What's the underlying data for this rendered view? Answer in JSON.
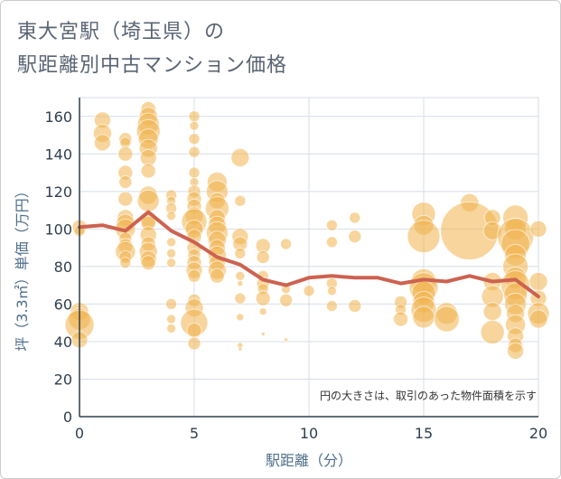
{
  "title_lines": [
    "東大宮駅（埼玉県）の",
    "駅距離別中古マンション価格"
  ],
  "chart_data": {
    "type": "scatter",
    "title": "東大宮駅（埼玉県）の駅距離別中古マンション価格",
    "xlabel": "駅距離（分）",
    "ylabel": "坪（3.3㎡）単価（万円）",
    "xlim": [
      0,
      20
    ],
    "ylim": [
      0,
      170
    ],
    "x_ticks": [
      0,
      5,
      10,
      15,
      20
    ],
    "y_ticks": [
      0,
      20,
      40,
      60,
      80,
      100,
      120,
      140,
      160
    ],
    "grid": true,
    "note": "円の大きさは、取引のあった物件面積を示す",
    "colors": {
      "bubble": "#f0b24c",
      "line": "#cd6250",
      "grid": "#d7dde4",
      "axis": "#2f3e4e"
    },
    "bubbles": [
      {
        "x": 0,
        "y": 101,
        "s": 8
      },
      {
        "x": 0,
        "y": 99,
        "s": 6
      },
      {
        "x": 0,
        "y": 56,
        "s": 10
      },
      {
        "x": 0,
        "y": 52,
        "s": 12
      },
      {
        "x": 0,
        "y": 49,
        "s": 16
      },
      {
        "x": 0,
        "y": 41,
        "s": 9
      },
      {
        "x": 1,
        "y": 158,
        "s": 9
      },
      {
        "x": 1,
        "y": 151,
        "s": 10
      },
      {
        "x": 1,
        "y": 146,
        "s": 9
      },
      {
        "x": 2,
        "y": 148,
        "s": 7
      },
      {
        "x": 2,
        "y": 146,
        "s": 6
      },
      {
        "x": 2,
        "y": 140,
        "s": 8
      },
      {
        "x": 2,
        "y": 130,
        "s": 8
      },
      {
        "x": 2,
        "y": 125,
        "s": 7
      },
      {
        "x": 2,
        "y": 116,
        "s": 8
      },
      {
        "x": 2,
        "y": 106,
        "s": 9
      },
      {
        "x": 2,
        "y": 103,
        "s": 10
      },
      {
        "x": 2,
        "y": 100,
        "s": 11
      },
      {
        "x": 2,
        "y": 95,
        "s": 7
      },
      {
        "x": 2,
        "y": 91,
        "s": 8
      },
      {
        "x": 2,
        "y": 88,
        "s": 11
      },
      {
        "x": 2,
        "y": 85,
        "s": 7
      },
      {
        "x": 2,
        "y": 82,
        "s": 6
      },
      {
        "x": 3,
        "y": 164,
        "s": 8
      },
      {
        "x": 3,
        "y": 160,
        "s": 10
      },
      {
        "x": 3,
        "y": 156,
        "s": 12
      },
      {
        "x": 3,
        "y": 152,
        "s": 13
      },
      {
        "x": 3,
        "y": 148,
        "s": 11
      },
      {
        "x": 3,
        "y": 143,
        "s": 10
      },
      {
        "x": 3,
        "y": 138,
        "s": 9
      },
      {
        "x": 3,
        "y": 131,
        "s": 8
      },
      {
        "x": 3,
        "y": 118,
        "s": 10
      },
      {
        "x": 3,
        "y": 115,
        "s": 12
      },
      {
        "x": 3,
        "y": 105,
        "s": 9
      },
      {
        "x": 3,
        "y": 103,
        "s": 8
      },
      {
        "x": 3,
        "y": 97,
        "s": 9
      },
      {
        "x": 3,
        "y": 92,
        "s": 8
      },
      {
        "x": 3,
        "y": 88,
        "s": 10
      },
      {
        "x": 3,
        "y": 84,
        "s": 9
      },
      {
        "x": 3,
        "y": 82,
        "s": 8
      },
      {
        "x": 4,
        "y": 118,
        "s": 6
      },
      {
        "x": 4,
        "y": 115,
        "s": 5
      },
      {
        "x": 4,
        "y": 111,
        "s": 6
      },
      {
        "x": 4,
        "y": 107,
        "s": 5
      },
      {
        "x": 4,
        "y": 93,
        "s": 5
      },
      {
        "x": 4,
        "y": 87,
        "s": 5
      },
      {
        "x": 4,
        "y": 82,
        "s": 5
      },
      {
        "x": 4,
        "y": 60,
        "s": 6
      },
      {
        "x": 4,
        "y": 52,
        "s": 5
      },
      {
        "x": 4,
        "y": 47,
        "s": 5
      },
      {
        "x": 5,
        "y": 160,
        "s": 6
      },
      {
        "x": 5,
        "y": 155,
        "s": 5
      },
      {
        "x": 5,
        "y": 148,
        "s": 6
      },
      {
        "x": 5,
        "y": 141,
        "s": 6
      },
      {
        "x": 5,
        "y": 130,
        "s": 6
      },
      {
        "x": 5,
        "y": 125,
        "s": 5
      },
      {
        "x": 5,
        "y": 120,
        "s": 7
      },
      {
        "x": 5,
        "y": 116,
        "s": 8
      },
      {
        "x": 5,
        "y": 112,
        "s": 8
      },
      {
        "x": 5,
        "y": 107,
        "s": 10
      },
      {
        "x": 5,
        "y": 104,
        "s": 14
      },
      {
        "x": 5,
        "y": 100,
        "s": 10
      },
      {
        "x": 5,
        "y": 96,
        "s": 8
      },
      {
        "x": 5,
        "y": 90,
        "s": 8
      },
      {
        "x": 5,
        "y": 86,
        "s": 7
      },
      {
        "x": 5,
        "y": 82,
        "s": 8
      },
      {
        "x": 5,
        "y": 78,
        "s": 9
      },
      {
        "x": 5,
        "y": 75,
        "s": 7
      },
      {
        "x": 5,
        "y": 62,
        "s": 7
      },
      {
        "x": 5,
        "y": 58,
        "s": 10
      },
      {
        "x": 5,
        "y": 50,
        "s": 15
      },
      {
        "x": 5,
        "y": 46,
        "s": 8
      },
      {
        "x": 5,
        "y": 39,
        "s": 7
      },
      {
        "x": 6,
        "y": 125,
        "s": 11
      },
      {
        "x": 6,
        "y": 120,
        "s": 12
      },
      {
        "x": 6,
        "y": 115,
        "s": 9
      },
      {
        "x": 6,
        "y": 111,
        "s": 13
      },
      {
        "x": 6,
        "y": 106,
        "s": 9
      },
      {
        "x": 6,
        "y": 102,
        "s": 10
      },
      {
        "x": 6,
        "y": 98,
        "s": 12
      },
      {
        "x": 6,
        "y": 94,
        "s": 10
      },
      {
        "x": 6,
        "y": 90,
        "s": 9
      },
      {
        "x": 6,
        "y": 86,
        "s": 10
      },
      {
        "x": 6,
        "y": 82,
        "s": 9
      },
      {
        "x": 6,
        "y": 78,
        "s": 10
      },
      {
        "x": 6,
        "y": 75,
        "s": 8
      },
      {
        "x": 7,
        "y": 138,
        "s": 10
      },
      {
        "x": 7,
        "y": 115,
        "s": 6
      },
      {
        "x": 7,
        "y": 96,
        "s": 9
      },
      {
        "x": 7,
        "y": 92,
        "s": 8
      },
      {
        "x": 7,
        "y": 87,
        "s": 6
      },
      {
        "x": 7,
        "y": 75,
        "s": 5
      },
      {
        "x": 7,
        "y": 71,
        "s": 3
      },
      {
        "x": 7,
        "y": 63,
        "s": 6
      },
      {
        "x": 7,
        "y": 53,
        "s": 4
      },
      {
        "x": 7,
        "y": 38,
        "s": 3
      },
      {
        "x": 7,
        "y": 36,
        "s": 2
      },
      {
        "x": 8,
        "y": 91,
        "s": 8
      },
      {
        "x": 8,
        "y": 85,
        "s": 7
      },
      {
        "x": 8,
        "y": 75,
        "s": 6
      },
      {
        "x": 8,
        "y": 71,
        "s": 7
      },
      {
        "x": 8,
        "y": 68,
        "s": 6
      },
      {
        "x": 8,
        "y": 63,
        "s": 8
      },
      {
        "x": 8,
        "y": 56,
        "s": 4
      },
      {
        "x": 8,
        "y": 44,
        "s": 2
      },
      {
        "x": 9,
        "y": 92,
        "s": 6
      },
      {
        "x": 9,
        "y": 68,
        "s": 5
      },
      {
        "x": 9,
        "y": 62,
        "s": 7
      },
      {
        "x": 9,
        "y": 41,
        "s": 2
      },
      {
        "x": 10,
        "y": 67,
        "s": 6
      },
      {
        "x": 11,
        "y": 102,
        "s": 6
      },
      {
        "x": 11,
        "y": 93,
        "s": 6
      },
      {
        "x": 11,
        "y": 71,
        "s": 6
      },
      {
        "x": 11,
        "y": 67,
        "s": 5
      },
      {
        "x": 11,
        "y": 59,
        "s": 6
      },
      {
        "x": 12,
        "y": 106,
        "s": 6
      },
      {
        "x": 12,
        "y": 96,
        "s": 7
      },
      {
        "x": 12,
        "y": 59,
        "s": 7
      },
      {
        "x": 14,
        "y": 61,
        "s": 7
      },
      {
        "x": 14,
        "y": 57,
        "s": 6
      },
      {
        "x": 14,
        "y": 52,
        "s": 8
      },
      {
        "x": 15,
        "y": 108,
        "s": 13
      },
      {
        "x": 15,
        "y": 102,
        "s": 11
      },
      {
        "x": 15,
        "y": 96,
        "s": 18
      },
      {
        "x": 15,
        "y": 72,
        "s": 14
      },
      {
        "x": 15,
        "y": 69,
        "s": 16
      },
      {
        "x": 15,
        "y": 66,
        "s": 13
      },
      {
        "x": 15,
        "y": 61,
        "s": 12
      },
      {
        "x": 15,
        "y": 57,
        "s": 14
      },
      {
        "x": 15,
        "y": 53,
        "s": 12
      },
      {
        "x": 16,
        "y": 55,
        "s": 12
      },
      {
        "x": 16,
        "y": 52,
        "s": 14
      },
      {
        "x": 17,
        "y": 114,
        "s": 10
      },
      {
        "x": 17,
        "y": 99,
        "s": 32
      },
      {
        "x": 18,
        "y": 106,
        "s": 9
      },
      {
        "x": 18,
        "y": 99,
        "s": 10
      },
      {
        "x": 18,
        "y": 72,
        "s": 10
      },
      {
        "x": 18,
        "y": 64,
        "s": 12
      },
      {
        "x": 18,
        "y": 56,
        "s": 10
      },
      {
        "x": 18,
        "y": 45,
        "s": 13
      },
      {
        "x": 19,
        "y": 106,
        "s": 14
      },
      {
        "x": 19,
        "y": 100,
        "s": 12
      },
      {
        "x": 19,
        "y": 96,
        "s": 20
      },
      {
        "x": 19,
        "y": 92,
        "s": 16
      },
      {
        "x": 19,
        "y": 86,
        "s": 12
      },
      {
        "x": 19,
        "y": 80,
        "s": 14
      },
      {
        "x": 19,
        "y": 74,
        "s": 12
      },
      {
        "x": 19,
        "y": 70,
        "s": 16
      },
      {
        "x": 19,
        "y": 65,
        "s": 13
      },
      {
        "x": 19,
        "y": 60,
        "s": 12
      },
      {
        "x": 19,
        "y": 55,
        "s": 10
      },
      {
        "x": 19,
        "y": 49,
        "s": 11
      },
      {
        "x": 19,
        "y": 43,
        "s": 9
      },
      {
        "x": 19,
        "y": 38,
        "s": 8
      },
      {
        "x": 19,
        "y": 35,
        "s": 9
      },
      {
        "x": 20,
        "y": 100,
        "s": 9
      },
      {
        "x": 20,
        "y": 72,
        "s": 10
      },
      {
        "x": 20,
        "y": 63,
        "s": 9
      },
      {
        "x": 20,
        "y": 55,
        "s": 12
      },
      {
        "x": 20,
        "y": 52,
        "s": 10
      }
    ],
    "trend": {
      "x": [
        0,
        1,
        2,
        3,
        4,
        5,
        6,
        7,
        8,
        9,
        10,
        11,
        12,
        13,
        14,
        15,
        16,
        17,
        18,
        19,
        20
      ],
      "y": [
        101,
        102,
        99,
        109,
        99,
        93,
        85,
        81,
        73,
        70,
        74,
        75,
        74,
        74,
        71,
        73,
        72,
        75,
        72,
        73,
        64
      ]
    }
  }
}
